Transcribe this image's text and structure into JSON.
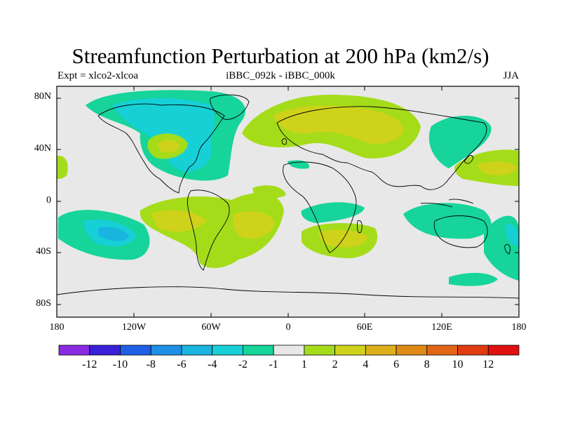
{
  "title": "Streamfunction Perturbation at 200 hPa (km2/s)",
  "left_subtitle": "Expt = xlco2-xlcoa",
  "center_subtitle": "iBBC_092k - iBBC_000k",
  "right_subtitle": "JJA",
  "lat_labels": [
    "80N",
    "40N",
    "0",
    "40S",
    "80S"
  ],
  "lon_labels": [
    "180",
    "120W",
    "60W",
    "0",
    "60E",
    "120E",
    "180"
  ],
  "colorbar": {
    "colors": [
      "#8a2be2",
      "#3a20d8",
      "#1f5fe6",
      "#1e8fe6",
      "#19b4e0",
      "#16d0d6",
      "#16d49a",
      "#e8e8e8",
      "#a5dc1a",
      "#cfd21a",
      "#dcb01a",
      "#e08a16",
      "#e06616",
      "#e03c10",
      "#e01010"
    ],
    "labels": [
      "-12",
      "-10",
      "-8",
      "-6",
      "-4",
      "-2",
      "-1",
      "1",
      "2",
      "4",
      "6",
      "8",
      "10",
      "12"
    ]
  },
  "colors": {
    "background_field": "#e8e8e8",
    "neg_weak": "#16d49a",
    "neg_mid": "#16d0d6",
    "neg_strong": "#19b4e0",
    "pos_weak": "#a5dc1a",
    "pos_mid": "#cfd21a"
  }
}
